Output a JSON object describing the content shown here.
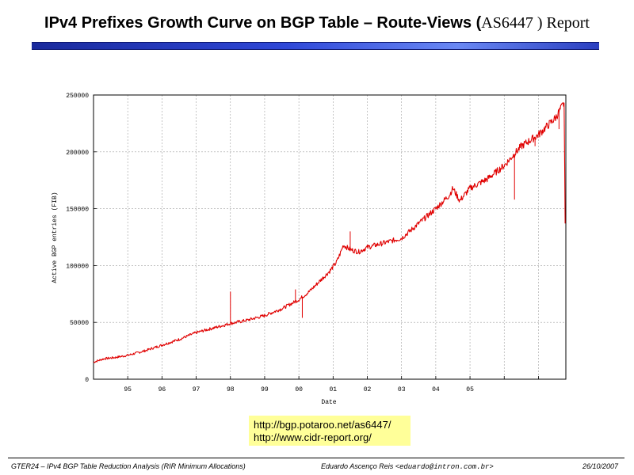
{
  "slide": {
    "title_main": "IPv4 Prefixes Growth Curve on BGP Table – Route-Views (",
    "title_as": "AS6447 ) Report"
  },
  "links": [
    "http://bgp.potaroo.net/as6447/",
    "http://www.cidr-report.org/"
  ],
  "footer": {
    "left": "GTER24 – IPv4 BGP Table Reduction Analysis (RIR Minimum Allocations)",
    "author": "Eduardo Ascenço Reis <",
    "email": "eduardo@intron.com.br",
    "author_end": ">",
    "date": "26/10/2007"
  },
  "colors": {
    "series": "#e00000",
    "grid": "#a0a0a0",
    "title_bar": "#2f48d8",
    "links_bg": "#ffff99"
  },
  "chart_data": {
    "type": "line",
    "xlabel": "Date",
    "ylabel": "Active BGP entries (FIB)",
    "xlim": [
      1994,
      2007.8
    ],
    "ylim": [
      0,
      250000
    ],
    "x_ticks": [
      {
        "value": 1995,
        "label": "95"
      },
      {
        "value": 1996,
        "label": "96"
      },
      {
        "value": 1997,
        "label": "97"
      },
      {
        "value": 1998,
        "label": "98"
      },
      {
        "value": 1999,
        "label": "99"
      },
      {
        "value": 2000,
        "label": "00"
      },
      {
        "value": 2001,
        "label": "01"
      },
      {
        "value": 2002,
        "label": "02"
      },
      {
        "value": 2003,
        "label": "03"
      },
      {
        "value": 2004,
        "label": "04"
      },
      {
        "value": 2005,
        "label": "05"
      },
      {
        "value": 2006,
        "label": ""
      },
      {
        "value": 2007,
        "label": ""
      }
    ],
    "y_ticks": [
      0,
      50000,
      100000,
      150000,
      200000,
      250000
    ],
    "grid": true,
    "series": [
      {
        "x": [
          1994.0,
          1994.3,
          1994.6,
          1995.0,
          1995.5,
          1996.0,
          1996.5,
          1997.0,
          1997.5,
          1998.0,
          1998.5,
          1999.0,
          1999.5,
          2000.0,
          2000.3,
          2000.6,
          2000.9,
          2001.1,
          2001.2,
          2001.3,
          2001.5,
          2001.75,
          2002.0,
          2002.5,
          2003.0,
          2003.5,
          2004.0,
          2004.4,
          2004.5,
          2004.7,
          2005.0,
          2005.5,
          2006.0,
          2006.5,
          2007.0,
          2007.5,
          2007.75,
          2007.78
        ],
        "y": [
          15000,
          18000,
          19000,
          21000,
          25000,
          30000,
          35000,
          41000,
          45000,
          49000,
          52000,
          56000,
          62000,
          70000,
          77000,
          86000,
          95000,
          103000,
          110000,
          118000,
          114000,
          112000,
          116000,
          120000,
          124000,
          137000,
          150000,
          162000,
          168000,
          157000,
          168000,
          176000,
          188000,
          205000,
          215000,
          230000,
          243000,
          137000
        ]
      }
    ],
    "spikes": [
      {
        "x": 1998.0,
        "y": 77000
      },
      {
        "x": 1999.9,
        "y": 79000
      },
      {
        "x": 2000.1,
        "y": 54000
      },
      {
        "x": 2001.5,
        "y": 130000
      },
      {
        "x": 2006.3,
        "y": 158000
      },
      {
        "x": 2006.9,
        "y": 205000
      },
      {
        "x": 2007.6,
        "y": 220000
      }
    ]
  }
}
